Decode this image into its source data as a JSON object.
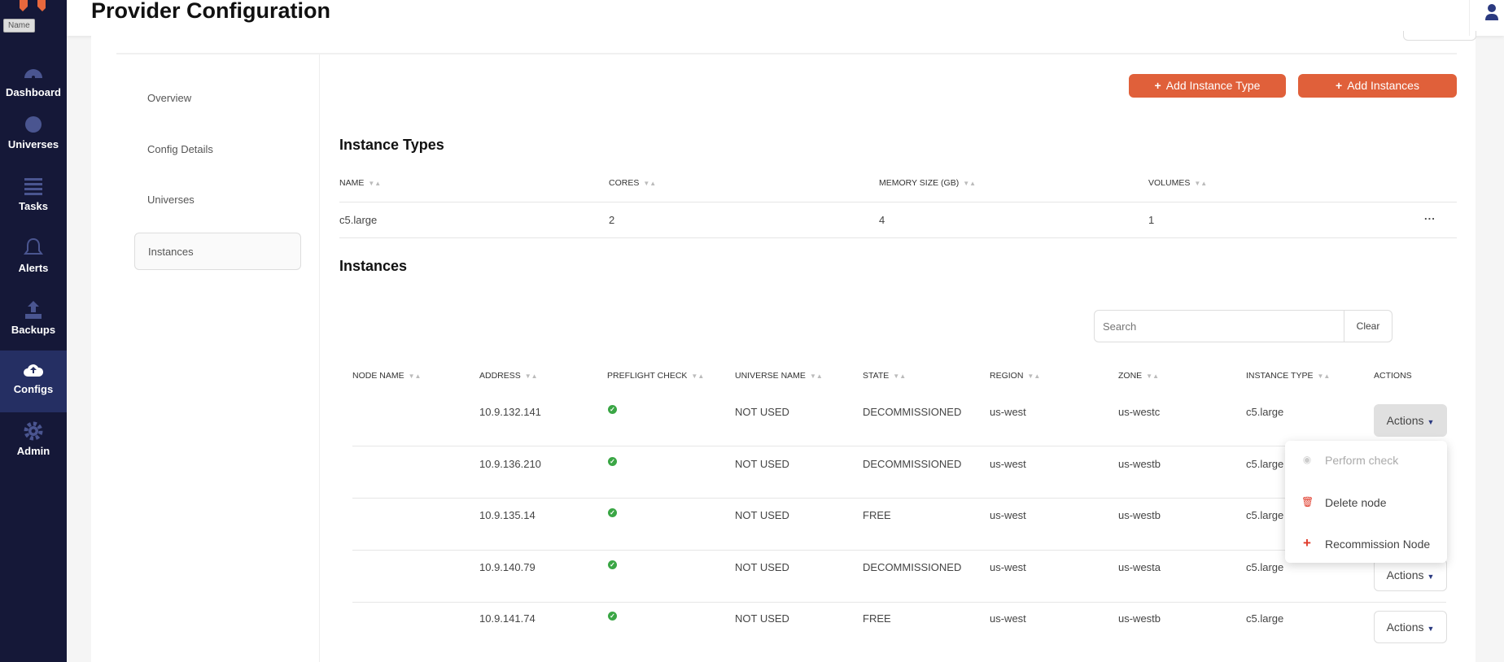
{
  "sidebar": {
    "logo_tooltip": "Name",
    "items": [
      {
        "label": "Dashboard",
        "icon": "dashboard-icon"
      },
      {
        "label": "Universes",
        "icon": "globe-icon"
      },
      {
        "label": "Tasks",
        "icon": "list-icon"
      },
      {
        "label": "Alerts",
        "icon": "bell-icon"
      },
      {
        "label": "Backups",
        "icon": "upload-icon"
      },
      {
        "label": "Configs",
        "icon": "cloud-upload-icon",
        "active": true
      },
      {
        "label": "Admin",
        "icon": "gear-icon"
      }
    ]
  },
  "header": {
    "title": "Provider Configuration"
  },
  "left_nav": {
    "items": [
      "Overview",
      "Config Details",
      "Universes",
      "Instances"
    ],
    "active": "Instances"
  },
  "buttons": {
    "add_instance_type": "Add Instance Type",
    "add_instances": "Add Instances"
  },
  "instance_types": {
    "title": "Instance Types",
    "columns": [
      "NAME",
      "CORES",
      "MEMORY SIZE (GB)",
      "VOLUMES"
    ],
    "rows": [
      {
        "name": "c5.large",
        "cores": "2",
        "memory": "4",
        "volumes": "1"
      }
    ],
    "more": "..."
  },
  "instances": {
    "title": "Instances",
    "search_placeholder": "Search",
    "clear_label": "Clear",
    "columns": [
      "NODE NAME",
      "ADDRESS",
      "PREFLIGHT CHECK",
      "UNIVERSE NAME",
      "STATE",
      "REGION",
      "ZONE",
      "INSTANCE TYPE",
      "ACTIONS"
    ],
    "rows": [
      {
        "node": "",
        "address": "10.9.132.141",
        "preflight": "passed",
        "universe": "NOT USED",
        "state": "DECOMMISSIONED",
        "region": "us-west",
        "zone": "us-westc",
        "type": "c5.large"
      },
      {
        "node": "",
        "address": "10.9.136.210",
        "preflight": "passed",
        "universe": "NOT USED",
        "state": "DECOMMISSIONED",
        "region": "us-west",
        "zone": "us-westb",
        "type": "c5.large"
      },
      {
        "node": "",
        "address": "10.9.135.14",
        "preflight": "passed",
        "universe": "NOT USED",
        "state": "FREE",
        "region": "us-west",
        "zone": "us-westb",
        "type": "c5.large"
      },
      {
        "node": "",
        "address": "10.9.140.79",
        "preflight": "passed",
        "universe": "NOT USED",
        "state": "DECOMMISSIONED",
        "region": "us-west",
        "zone": "us-westa",
        "type": "c5.large"
      },
      {
        "node": "",
        "address": "10.9.141.74",
        "preflight": "passed",
        "universe": "NOT USED",
        "state": "FREE",
        "region": "us-west",
        "zone": "us-westb",
        "type": "c5.large"
      }
    ],
    "actions_label": "Actions"
  },
  "actions_menu": {
    "items": [
      {
        "label": "Perform check",
        "icon": "play-circle-icon",
        "disabled": true
      },
      {
        "label": "Delete node",
        "icon": "trash-icon"
      },
      {
        "label": "Recommission Node",
        "icon": "plus-icon"
      }
    ]
  },
  "colors": {
    "accent": "#e0603a",
    "sidebar": "#151838",
    "sidebar_active": "#252f63",
    "success": "#3aa645"
  }
}
